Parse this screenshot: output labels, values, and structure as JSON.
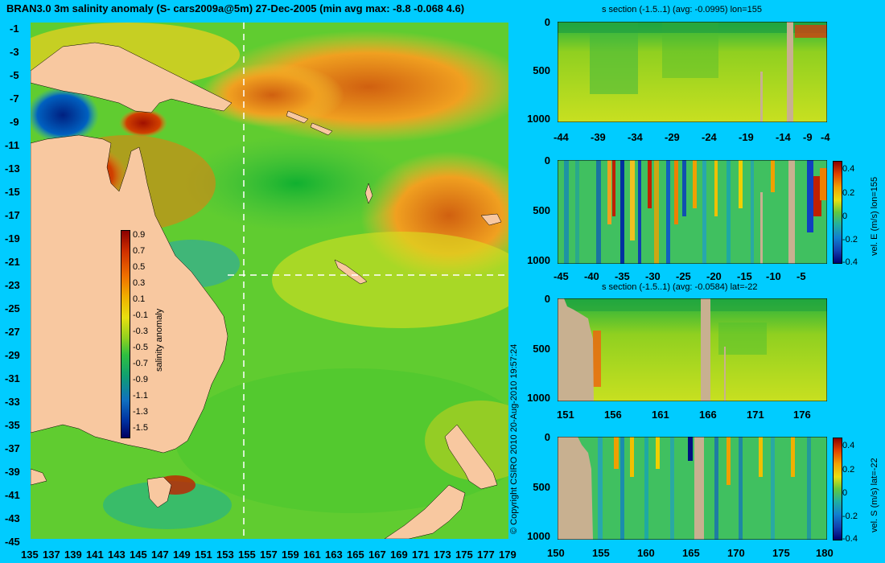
{
  "main_map": {
    "title": "BRAN3.0 3m salinity anomaly (S- cars2009a@5m) 27-Dec-2005 (min avg max: -8.8 -0.068 4.6)",
    "x_ticks": [
      "135",
      "137",
      "139",
      "141",
      "143",
      "145",
      "147",
      "149",
      "151",
      "153",
      "155",
      "157",
      "159",
      "161",
      "163",
      "165",
      "167",
      "169",
      "171",
      "173",
      "175",
      "177",
      "179"
    ],
    "y_ticks": [
      "-1",
      "-3",
      "-5",
      "-7",
      "-9",
      "-11",
      "-13",
      "-15",
      "-17",
      "-19",
      "-21",
      "-23",
      "-25",
      "-27",
      "-29",
      "-31",
      "-33",
      "-35",
      "-37",
      "-39",
      "-41",
      "-43",
      "-45"
    ],
    "colorbar_label": "salinity anomaly",
    "colorbar_ticks": [
      "0.9",
      "0.7",
      "0.5",
      "0.3",
      "0.1",
      "-0.1",
      "-0.3",
      "-0.5",
      "-0.7",
      "-0.9",
      "-1.1",
      "-1.3",
      "-1.5"
    ],
    "copyright": "© Copyright CSIRO 2010   20-Aug-2010 19:57:24"
  },
  "panels": [
    {
      "title": "s section (-1.5..1) (avg: -0.0995) lon=155",
      "x_ticks": [
        "-44",
        "-39",
        "-34",
        "-29",
        "-24",
        "-19",
        "-14",
        "-9",
        "-4"
      ],
      "y_ticks": [
        "0",
        "500",
        "1000"
      ]
    },
    {
      "title": "",
      "x_ticks": [
        "-45",
        "-40",
        "-35",
        "-30",
        "-25",
        "-20",
        "-15",
        "-10",
        "-5"
      ],
      "y_ticks": [
        "0",
        "500",
        "1000"
      ],
      "colorbar_label": "vel. E (m/s) lon=155",
      "colorbar_ticks": [
        "0.4",
        "0.2",
        "0",
        "-0.2",
        "-0.4"
      ]
    },
    {
      "title": "s section (-1.5..1) (avg: -0.0584) lat=-22",
      "x_ticks": [
        "151",
        "156",
        "161",
        "166",
        "171",
        "176"
      ],
      "y_ticks": [
        "0",
        "500",
        "1000"
      ]
    },
    {
      "title": "",
      "x_ticks": [
        "150",
        "155",
        "160",
        "165",
        "170",
        "175",
        "180"
      ],
      "y_ticks": [
        "0",
        "500",
        "1000"
      ],
      "colorbar_label": "vel. S (m/s) lat=-22",
      "colorbar_ticks": [
        "0.4",
        "0.2",
        "0",
        "-0.2",
        "-0.4"
      ]
    }
  ],
  "colors": {
    "background": "#00CCFF",
    "land": "#F8C8A0",
    "section_land": "#C8B090"
  }
}
